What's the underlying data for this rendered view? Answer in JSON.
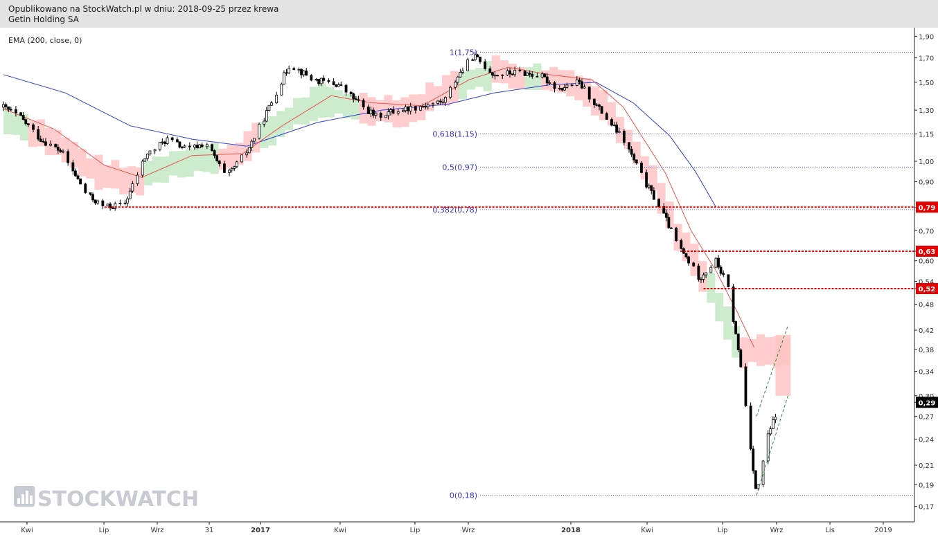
{
  "header": {
    "line1": "Opublikowano na StockWatch.pl w dniu: 2018-09-25 przez krewa",
    "line2": "Getin Holding SA"
  },
  "indicator_label": "EMA (200, close, 0)",
  "watermark": "STOCKWATCH",
  "colors": {
    "candle": "#000000",
    "ema_long": "#2f3fd8",
    "ema_short": "#e8554e",
    "cloud_red": "#ffc4c4",
    "cloud_green": "#c4e8c4",
    "support": "#e00000",
    "fib": "#3333cc",
    "trend": "#2a8a2a"
  },
  "chart_data": {
    "type": "candlestick",
    "title": "",
    "y_scale": "log",
    "ylim": [
      0.16,
      1.95
    ],
    "y_ticks": [
      "1,90",
      "1,70",
      "1,50",
      "1,30",
      "1,15",
      "1,00",
      "0,90",
      "0,79",
      "0,70",
      "0,63",
      "0,60",
      "0,54",
      "0,52",
      "0,48",
      "0,42",
      "0,38",
      "0,34",
      "0,30",
      "0,29",
      "0,27",
      "0,24",
      "0,21",
      "0,19",
      "0,17"
    ],
    "x_ticks": [
      "Kwi",
      "Lip",
      "Wrz",
      "31",
      "2017",
      "Kwi",
      "Lip",
      "Wrz",
      "2018",
      "Kwi",
      "Lip",
      "Wrz",
      "Lis",
      "2019"
    ],
    "x_ticks_bold": [
      "2017",
      "2018"
    ],
    "price_path": [
      [
        "2016-03-01",
        1.32
      ],
      [
        "2016-03-20",
        1.26
      ],
      [
        "2016-04-15",
        1.12
      ],
      [
        "2016-05-10",
        1.05
      ],
      [
        "2016-06-10",
        0.84
      ],
      [
        "2016-07-01",
        0.79
      ],
      [
        "2016-07-25",
        0.8
      ],
      [
        "2016-08-20",
        1.03
      ],
      [
        "2016-09-15",
        1.12
      ],
      [
        "2016-10-10",
        1.06
      ],
      [
        "2016-11-01",
        1.1
      ],
      [
        "2016-11-25",
        0.92
      ],
      [
        "2016-12-20",
        1.05
      ],
      [
        "2017-01-10",
        1.25
      ],
      [
        "2017-02-10",
        1.65
      ],
      [
        "2017-03-10",
        1.52
      ],
      [
        "2017-04-10",
        1.48
      ],
      [
        "2017-05-10",
        1.32
      ],
      [
        "2017-05-25",
        1.26
      ],
      [
        "2017-06-20",
        1.3
      ],
      [
        "2017-07-20",
        1.33
      ],
      [
        "2017-08-15",
        1.36
      ],
      [
        "2017-09-01",
        1.55
      ],
      [
        "2017-09-20",
        1.72
      ],
      [
        "2017-10-15",
        1.56
      ],
      [
        "2017-11-15",
        1.58
      ],
      [
        "2017-12-10",
        1.55
      ],
      [
        "2018-01-01",
        1.45
      ],
      [
        "2018-01-25",
        1.5
      ],
      [
        "2018-02-20",
        1.3
      ],
      [
        "2018-03-20",
        1.12
      ],
      [
        "2018-04-15",
        0.9
      ],
      [
        "2018-05-05",
        0.78
      ],
      [
        "2018-05-25",
        0.65
      ],
      [
        "2018-06-20",
        0.55
      ],
      [
        "2018-07-10",
        0.6
      ],
      [
        "2018-07-25",
        0.52
      ],
      [
        "2018-08-10",
        0.34
      ],
      [
        "2018-08-28",
        0.18
      ],
      [
        "2018-09-10",
        0.24
      ],
      [
        "2018-09-25",
        0.29
      ]
    ],
    "last_price": 0.29,
    "ema_200": [
      [
        "2016-03-01",
        1.56
      ],
      [
        "2016-05-15",
        1.42
      ],
      [
        "2016-08-01",
        1.2
      ],
      [
        "2016-10-15",
        1.12
      ],
      [
        "2016-12-20",
        1.08
      ],
      [
        "2017-03-15",
        1.22
      ],
      [
        "2017-06-01",
        1.3
      ],
      [
        "2017-08-20",
        1.34
      ],
      [
        "2017-10-15",
        1.42
      ],
      [
        "2017-12-20",
        1.48
      ],
      [
        "2018-02-15",
        1.5
      ],
      [
        "2018-04-01",
        1.35
      ],
      [
        "2018-05-15",
        1.14
      ],
      [
        "2018-06-15",
        0.95
      ],
      [
        "2018-07-10",
        0.79
      ]
    ],
    "ema_short": [
      [
        "2016-03-01",
        1.31
      ],
      [
        "2016-05-01",
        1.18
      ],
      [
        "2016-07-01",
        0.98
      ],
      [
        "2016-08-15",
        0.92
      ],
      [
        "2016-10-15",
        1.03
      ],
      [
        "2016-12-15",
        1.04
      ],
      [
        "2017-02-01",
        1.2
      ],
      [
        "2017-04-01",
        1.4
      ],
      [
        "2017-05-20",
        1.35
      ],
      [
        "2017-07-20",
        1.33
      ],
      [
        "2017-09-15",
        1.52
      ],
      [
        "2017-11-01",
        1.62
      ],
      [
        "2017-12-20",
        1.56
      ],
      [
        "2018-02-10",
        1.52
      ],
      [
        "2018-03-20",
        1.32
      ],
      [
        "2018-05-10",
        0.94
      ],
      [
        "2018-06-10",
        0.7
      ],
      [
        "2018-07-10",
        0.57
      ],
      [
        "2018-08-05",
        0.46
      ],
      [
        "2018-08-25",
        0.385
      ]
    ],
    "horizontal_lines": [
      {
        "label": "0,79",
        "value": 0.79,
        "from": "2016-07-01"
      },
      {
        "label": "0,63",
        "value": 0.63,
        "from": "2018-05-28"
      },
      {
        "label": "0,52",
        "value": 0.52,
        "from": "2018-06-25"
      }
    ],
    "fibonacci": [
      {
        "label": "1(1,75)",
        "value": 1.75
      },
      {
        "label": "0,618(1,15)",
        "value": 1.15
      },
      {
        "label": "0,5(0,97)",
        "value": 0.97
      },
      {
        "label": "0,382(0,78)",
        "value": 0.78
      },
      {
        "label": "0(0,18)",
        "value": 0.18
      }
    ],
    "trend_channel": [
      {
        "from": [
          "2018-08-28",
          0.27
        ],
        "to": [
          "2018-10-05",
          0.43
        ]
      },
      {
        "from": [
          "2018-08-28",
          0.18
        ],
        "to": [
          "2018-10-05",
          0.3
        ]
      }
    ]
  }
}
